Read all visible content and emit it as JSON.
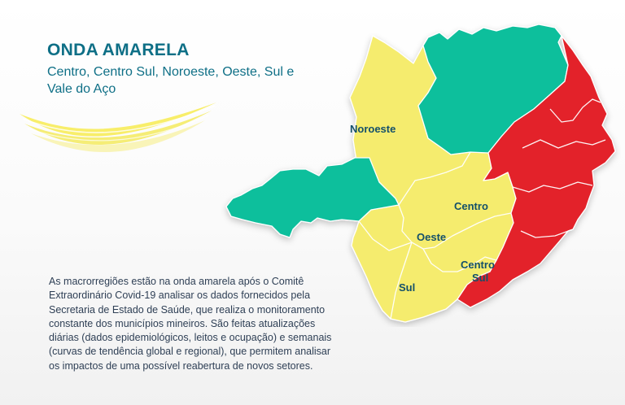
{
  "heading": {
    "title": "ONDA AMARELA",
    "subtitle": "Centro, Centro Sul, Noroeste, Oeste, Sul e Vale do Aço"
  },
  "body_text": "As macrorregiões estão na onda amarela após o Comitê Extraordinário Covid-19 analisar os dados fornecidos pela Secretaria de Estado de Saúde, que realiza o monitoramento constante dos municípios mineiros. São feitas atualizações diárias (dados epidemiológicos, leitos e ocupação) e semanais (curvas de tendência global e regional), que permitem analisar os impactos de uma possível reabertura de novos setores.",
  "map": {
    "colors": {
      "yellow": "#f5ec6e",
      "green": "#0fbf9c",
      "red": "#e3242b",
      "border": "#ffffff",
      "label": "#14506a"
    },
    "region_labels": {
      "noroeste": "Noroeste",
      "centro": "Centro",
      "oeste": "Oeste",
      "centro_sul_line1": "Centro",
      "centro_sul_line2": "Sul",
      "sul": "Sul"
    }
  }
}
